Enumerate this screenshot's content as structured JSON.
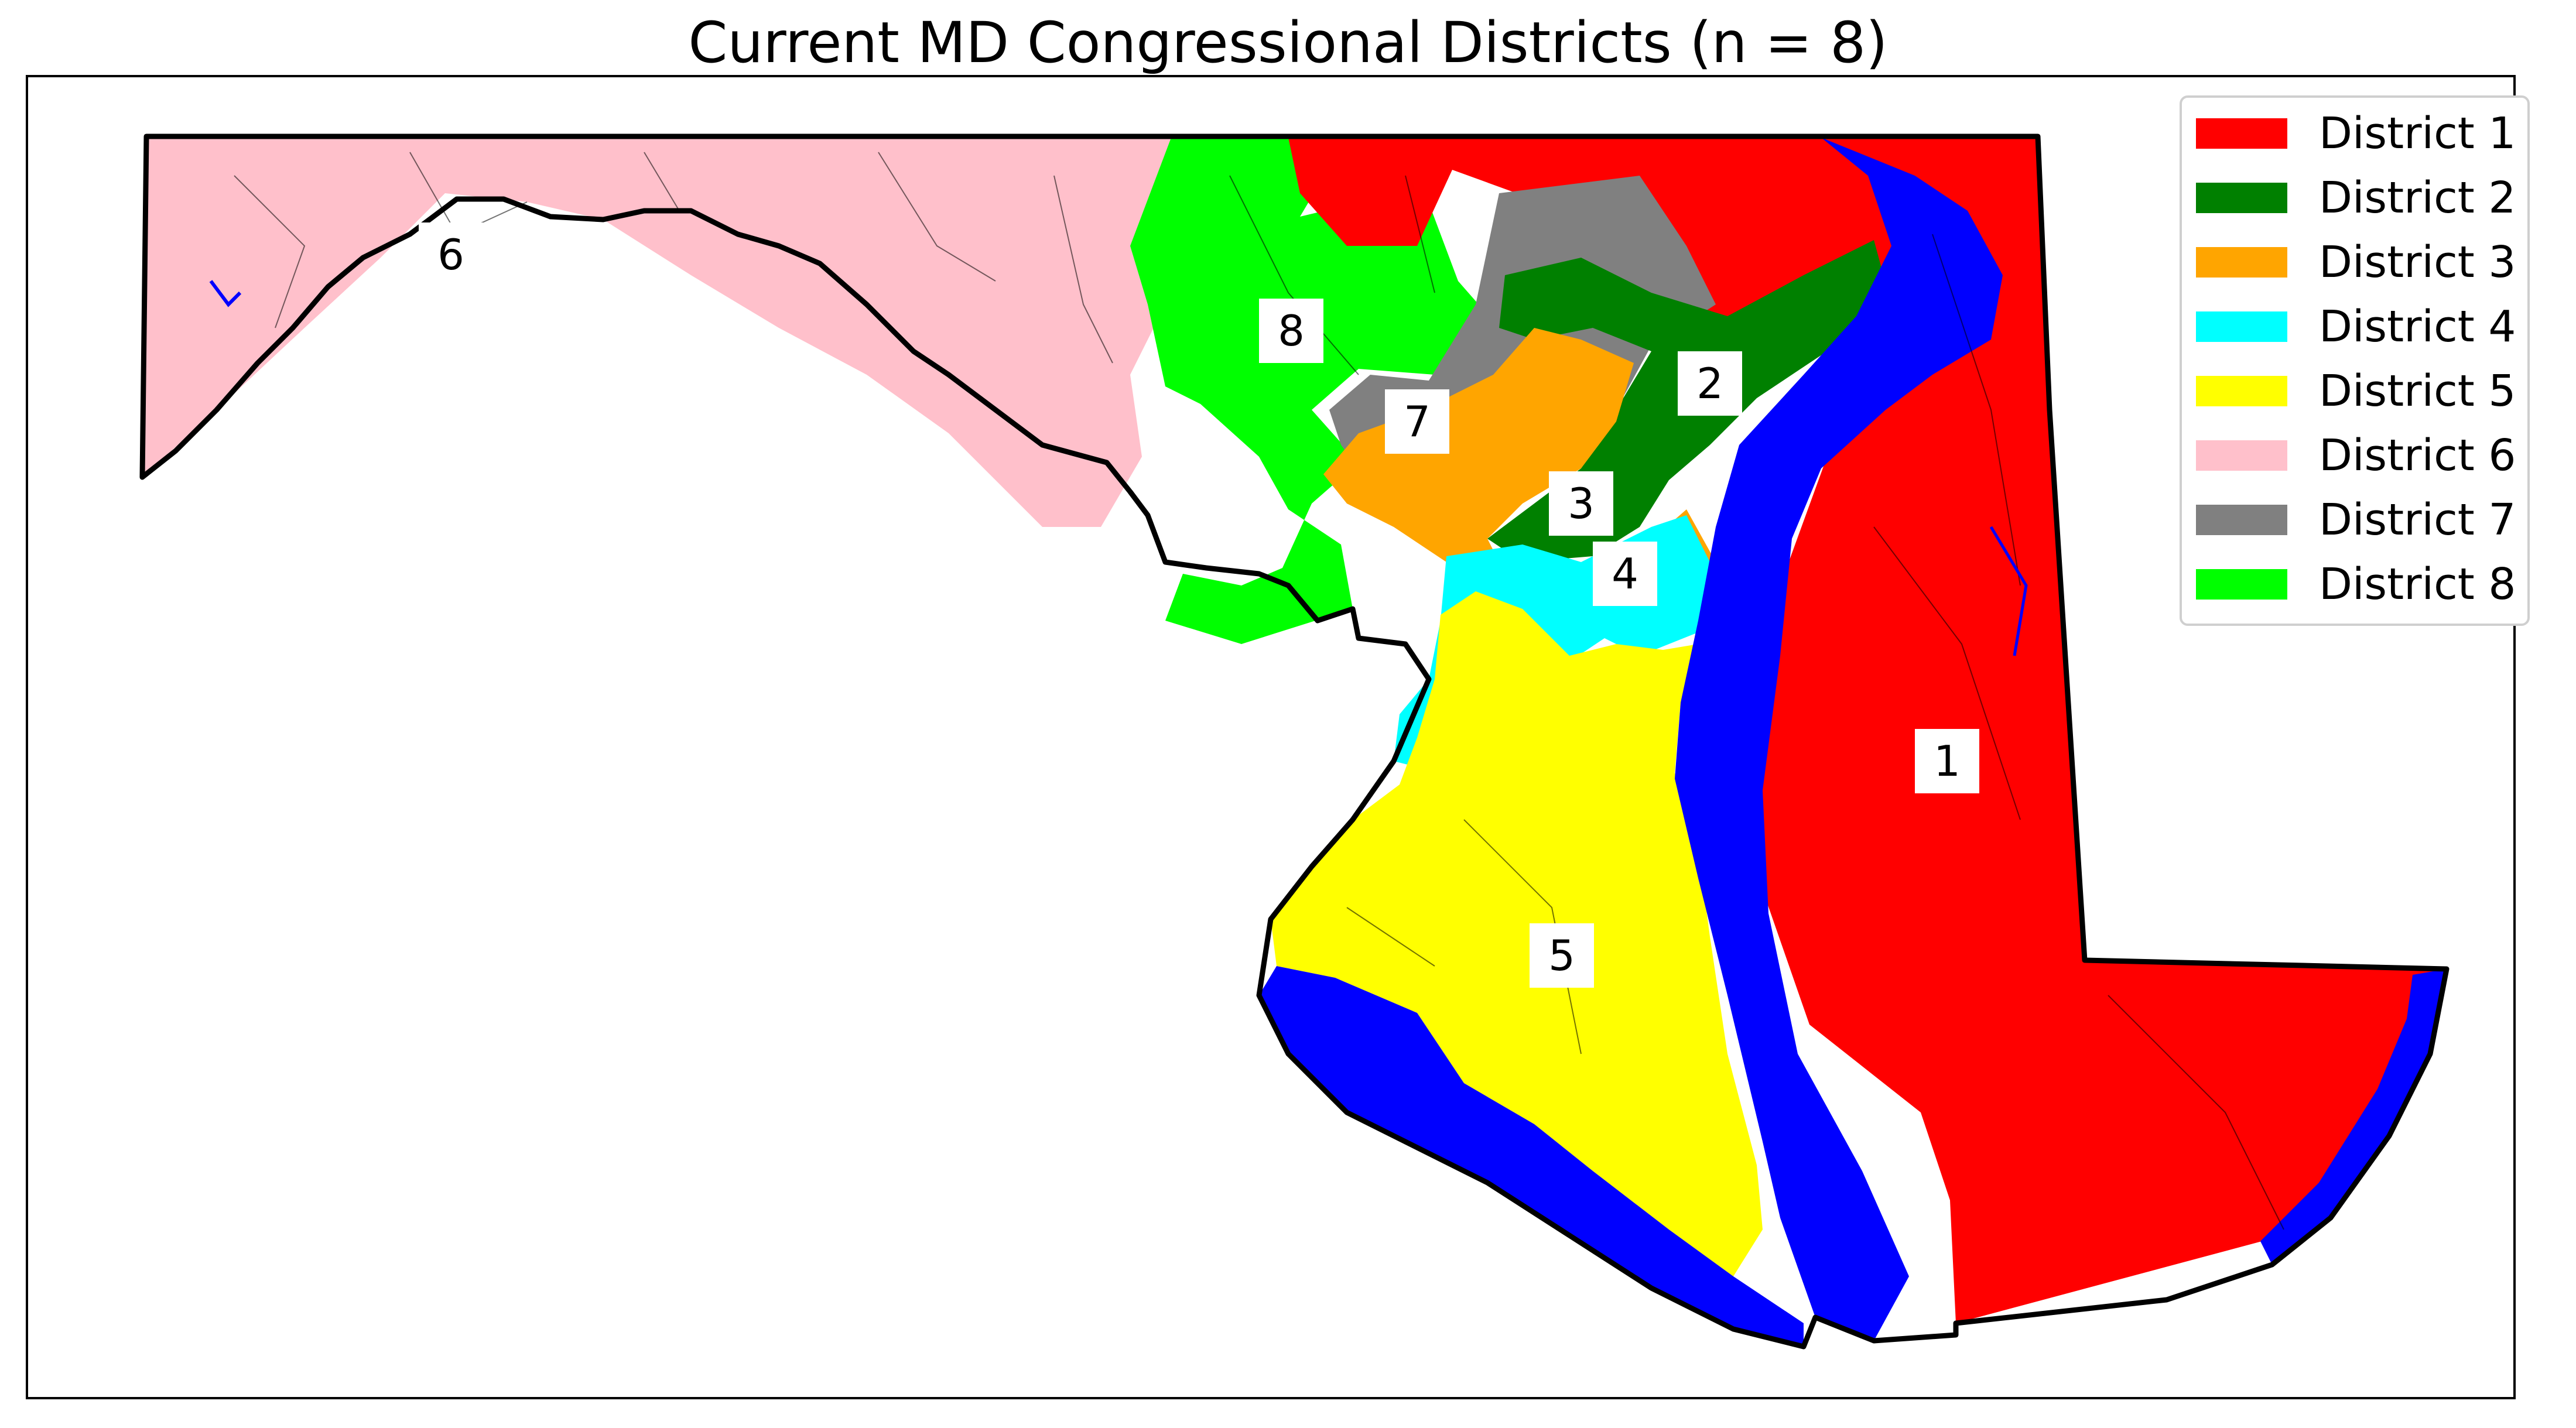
{
  "title": "Current MD Congressional Districts (n = 8)",
  "colors": {
    "district_1": "#ff0000",
    "district_2": "#008000",
    "district_3": "#ffa500",
    "district_4": "#00ffff",
    "district_5": "#ffff00",
    "district_6": "#ffc0cb",
    "district_7": "#808080",
    "district_8": "#00ff00",
    "water": "#0000ff"
  },
  "legend": [
    {
      "label": "District 1",
      "color": "#ff0000"
    },
    {
      "label": "District 2",
      "color": "#008000"
    },
    {
      "label": "District 3",
      "color": "#ffa500"
    },
    {
      "label": "District 4",
      "color": "#00ffff"
    },
    {
      "label": "District 5",
      "color": "#ffff00"
    },
    {
      "label": "District 6",
      "color": "#ffc0cb"
    },
    {
      "label": "District 7",
      "color": "#808080"
    },
    {
      "label": "District 8",
      "color": "#00ff00"
    }
  ],
  "district_labels": [
    "1",
    "2",
    "3",
    "4",
    "5",
    "6",
    "7",
    "8"
  ]
}
